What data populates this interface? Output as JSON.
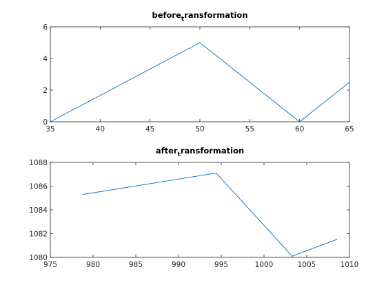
{
  "chart_data": [
    {
      "type": "line",
      "title_main": "before",
      "title_sub": "t",
      "title_rest": "ransformation",
      "xlim": [
        35,
        65
      ],
      "ylim": [
        0,
        6
      ],
      "xticks": [
        35,
        40,
        45,
        50,
        55,
        60,
        65
      ],
      "yticks": [
        0,
        2,
        4,
        6
      ],
      "x": [
        35,
        50,
        60,
        65
      ],
      "y": [
        0,
        5,
        0,
        2.5
      ],
      "color": "#0072bd"
    },
    {
      "type": "line",
      "title_main": "after",
      "title_sub": "t",
      "title_rest": "ransformation",
      "xlim": [
        975,
        1010
      ],
      "ylim": [
        1080,
        1088
      ],
      "xticks": [
        975,
        980,
        985,
        990,
        995,
        1000,
        1005,
        1010
      ],
      "yticks": [
        1080,
        1082,
        1084,
        1086,
        1088
      ],
      "x": [
        978.8,
        994.4,
        1003.3,
        1008.5
      ],
      "y": [
        1085.3,
        1087.1,
        1080.1,
        1081.5
      ],
      "color": "#0072bd"
    }
  ]
}
